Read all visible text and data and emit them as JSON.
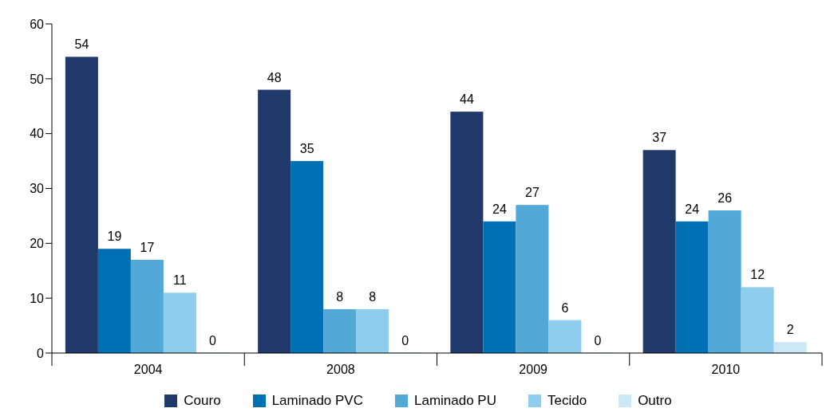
{
  "chart_data": {
    "type": "bar",
    "categories": [
      "2004",
      "2008",
      "2009",
      "2010"
    ],
    "series": [
      {
        "name": "Couro",
        "color": "#21386a",
        "values": [
          54,
          48,
          44,
          37
        ]
      },
      {
        "name": "Laminado PVC",
        "color": "#0070b4",
        "values": [
          19,
          35,
          24,
          24
        ]
      },
      {
        "name": "Laminado PU",
        "color": "#52a9d7",
        "values": [
          17,
          8,
          27,
          26
        ]
      },
      {
        "name": "Tecido",
        "color": "#8ecdeb",
        "values": [
          11,
          8,
          6,
          12
        ]
      },
      {
        "name": "Outro",
        "color": "#cce7f5",
        "values": [
          0,
          0,
          0,
          2
        ]
      }
    ],
    "ylim": [
      0,
      60
    ],
    "yticks": [
      0,
      10,
      20,
      30,
      40,
      50,
      60
    ],
    "grid": false,
    "legend": "bottom",
    "data_labels": true
  }
}
